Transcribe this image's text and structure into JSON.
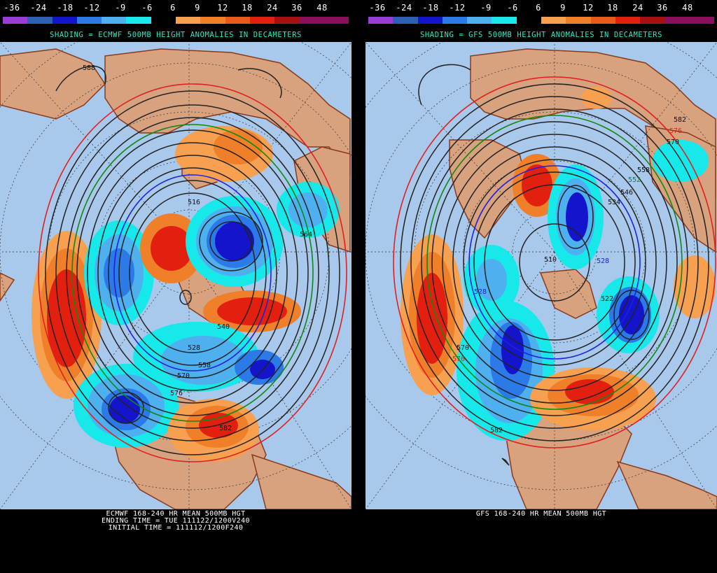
{
  "scale": {
    "labels": [
      "-36",
      "-24",
      "-18",
      "-12",
      "-9",
      "-6",
      "6",
      "9",
      "12",
      "18",
      "24",
      "36",
      "48"
    ],
    "colors": [
      "#9a3cd6",
      "#2f5fb0",
      "#1414cc",
      "#2b7ae8",
      "#4fb0f0",
      "#17e8ea",
      "#000000",
      "#f7a050",
      "#f07f2a",
      "#e85a1a",
      "#e32010",
      "#a81010",
      "#8a0f5a",
      "#8a0f5a"
    ]
  },
  "colors": {
    "ocean": "#a8c8ec",
    "land": "#d8a27e",
    "coast": "#8a3a1a",
    "contour": "#222222",
    "contour_red": "#e02020",
    "contour_green": "#118811",
    "contour_blue": "#2020dd",
    "title_text": "#35e6c0"
  },
  "left": {
    "shading_title": "SHADING = ECMWF 500MB HEIGHT ANOMALIES IN DECAMETERS",
    "footer": [
      "ECMWF 168-240 HR MEAN 500MB HGT",
      "ENDING TIME = TUE 111122/1200V240",
      "INITIAL TIME = 111112/1200F240"
    ],
    "contour_labels": [
      "588",
      "516",
      "564",
      "528",
      "576",
      "558",
      "540",
      "582",
      "570"
    ]
  },
  "right": {
    "shading_title": "SHADING = GFS 500MB HEIGHT ANOMALIES IN DECAMETERS",
    "footer": [
      "GFS 168-240 HR MEAN 500MB HGT"
    ],
    "contour_labels": [
      "582",
      "576",
      "570",
      "558",
      "552",
      "546",
      "534",
      "528",
      "510",
      "528",
      "522",
      "576",
      "570",
      "582"
    ]
  }
}
